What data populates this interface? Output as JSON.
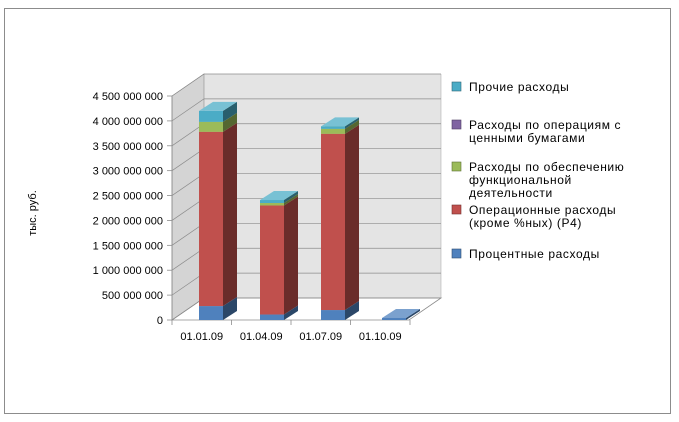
{
  "chart_data": {
    "type": "bar",
    "stacked": true,
    "style": "3d-column",
    "title": "",
    "xlabel": "",
    "ylabel": "тыс. руб.",
    "categories": [
      "01.01.09",
      "01.04.09",
      "01.07.09",
      "01.10.09"
    ],
    "ylim": [
      0,
      4500000000
    ],
    "yticks": [
      0,
      500000000,
      1000000000,
      1500000000,
      2000000000,
      2500000000,
      3000000000,
      3500000000,
      4000000000,
      4500000000
    ],
    "ytick_labels": [
      "0",
      "500 000 000",
      "1 000 000 000",
      "1 500 000 000",
      "2 000 000 000",
      "2 500 000 000",
      "3 000 000 000",
      "3 500 000 000",
      "4 000 000 000",
      "4 500 000 000"
    ],
    "gridlines": true,
    "legend_position": "right",
    "series": [
      {
        "name": "Процентные расходы",
        "color": "#4f81bd",
        "values": [
          280000000,
          110000000,
          200000000,
          40000000
        ]
      },
      {
        "name": "Операционные расходы (кроме %ных) (Р4)",
        "color": "#c0504d",
        "values": [
          3500000000,
          2190000000,
          3540000000,
          0
        ]
      },
      {
        "name": "Расходы по обеспечению функциональной деятельности",
        "color": "#9bbb59",
        "values": [
          200000000,
          50000000,
          100000000,
          0
        ]
      },
      {
        "name": "Расходы по операциям с ценными бумагами",
        "color": "#8064a2",
        "values": [
          0,
          0,
          0,
          0
        ]
      },
      {
        "name": "Прочие расходы",
        "color": "#4bacc6",
        "values": [
          220000000,
          60000000,
          50000000,
          0
        ]
      }
    ],
    "legend": [
      {
        "lines": [
          "Прочие расходы"
        ],
        "color": "#4bacc6"
      },
      {
        "lines": [
          "Расходы по операциям с",
          "ценными бумагами"
        ],
        "color": "#8064a2"
      },
      {
        "lines": [
          "Расходы по обеспечению",
          "функциональной",
          "деятельности"
        ],
        "color": "#9bbb59"
      },
      {
        "lines": [
          "Операционные расходы",
          "(кроме %ных) (Р4)"
        ],
        "color": "#c0504d"
      },
      {
        "lines": [
          "Процентные расходы"
        ],
        "color": "#4f81bd"
      }
    ]
  }
}
